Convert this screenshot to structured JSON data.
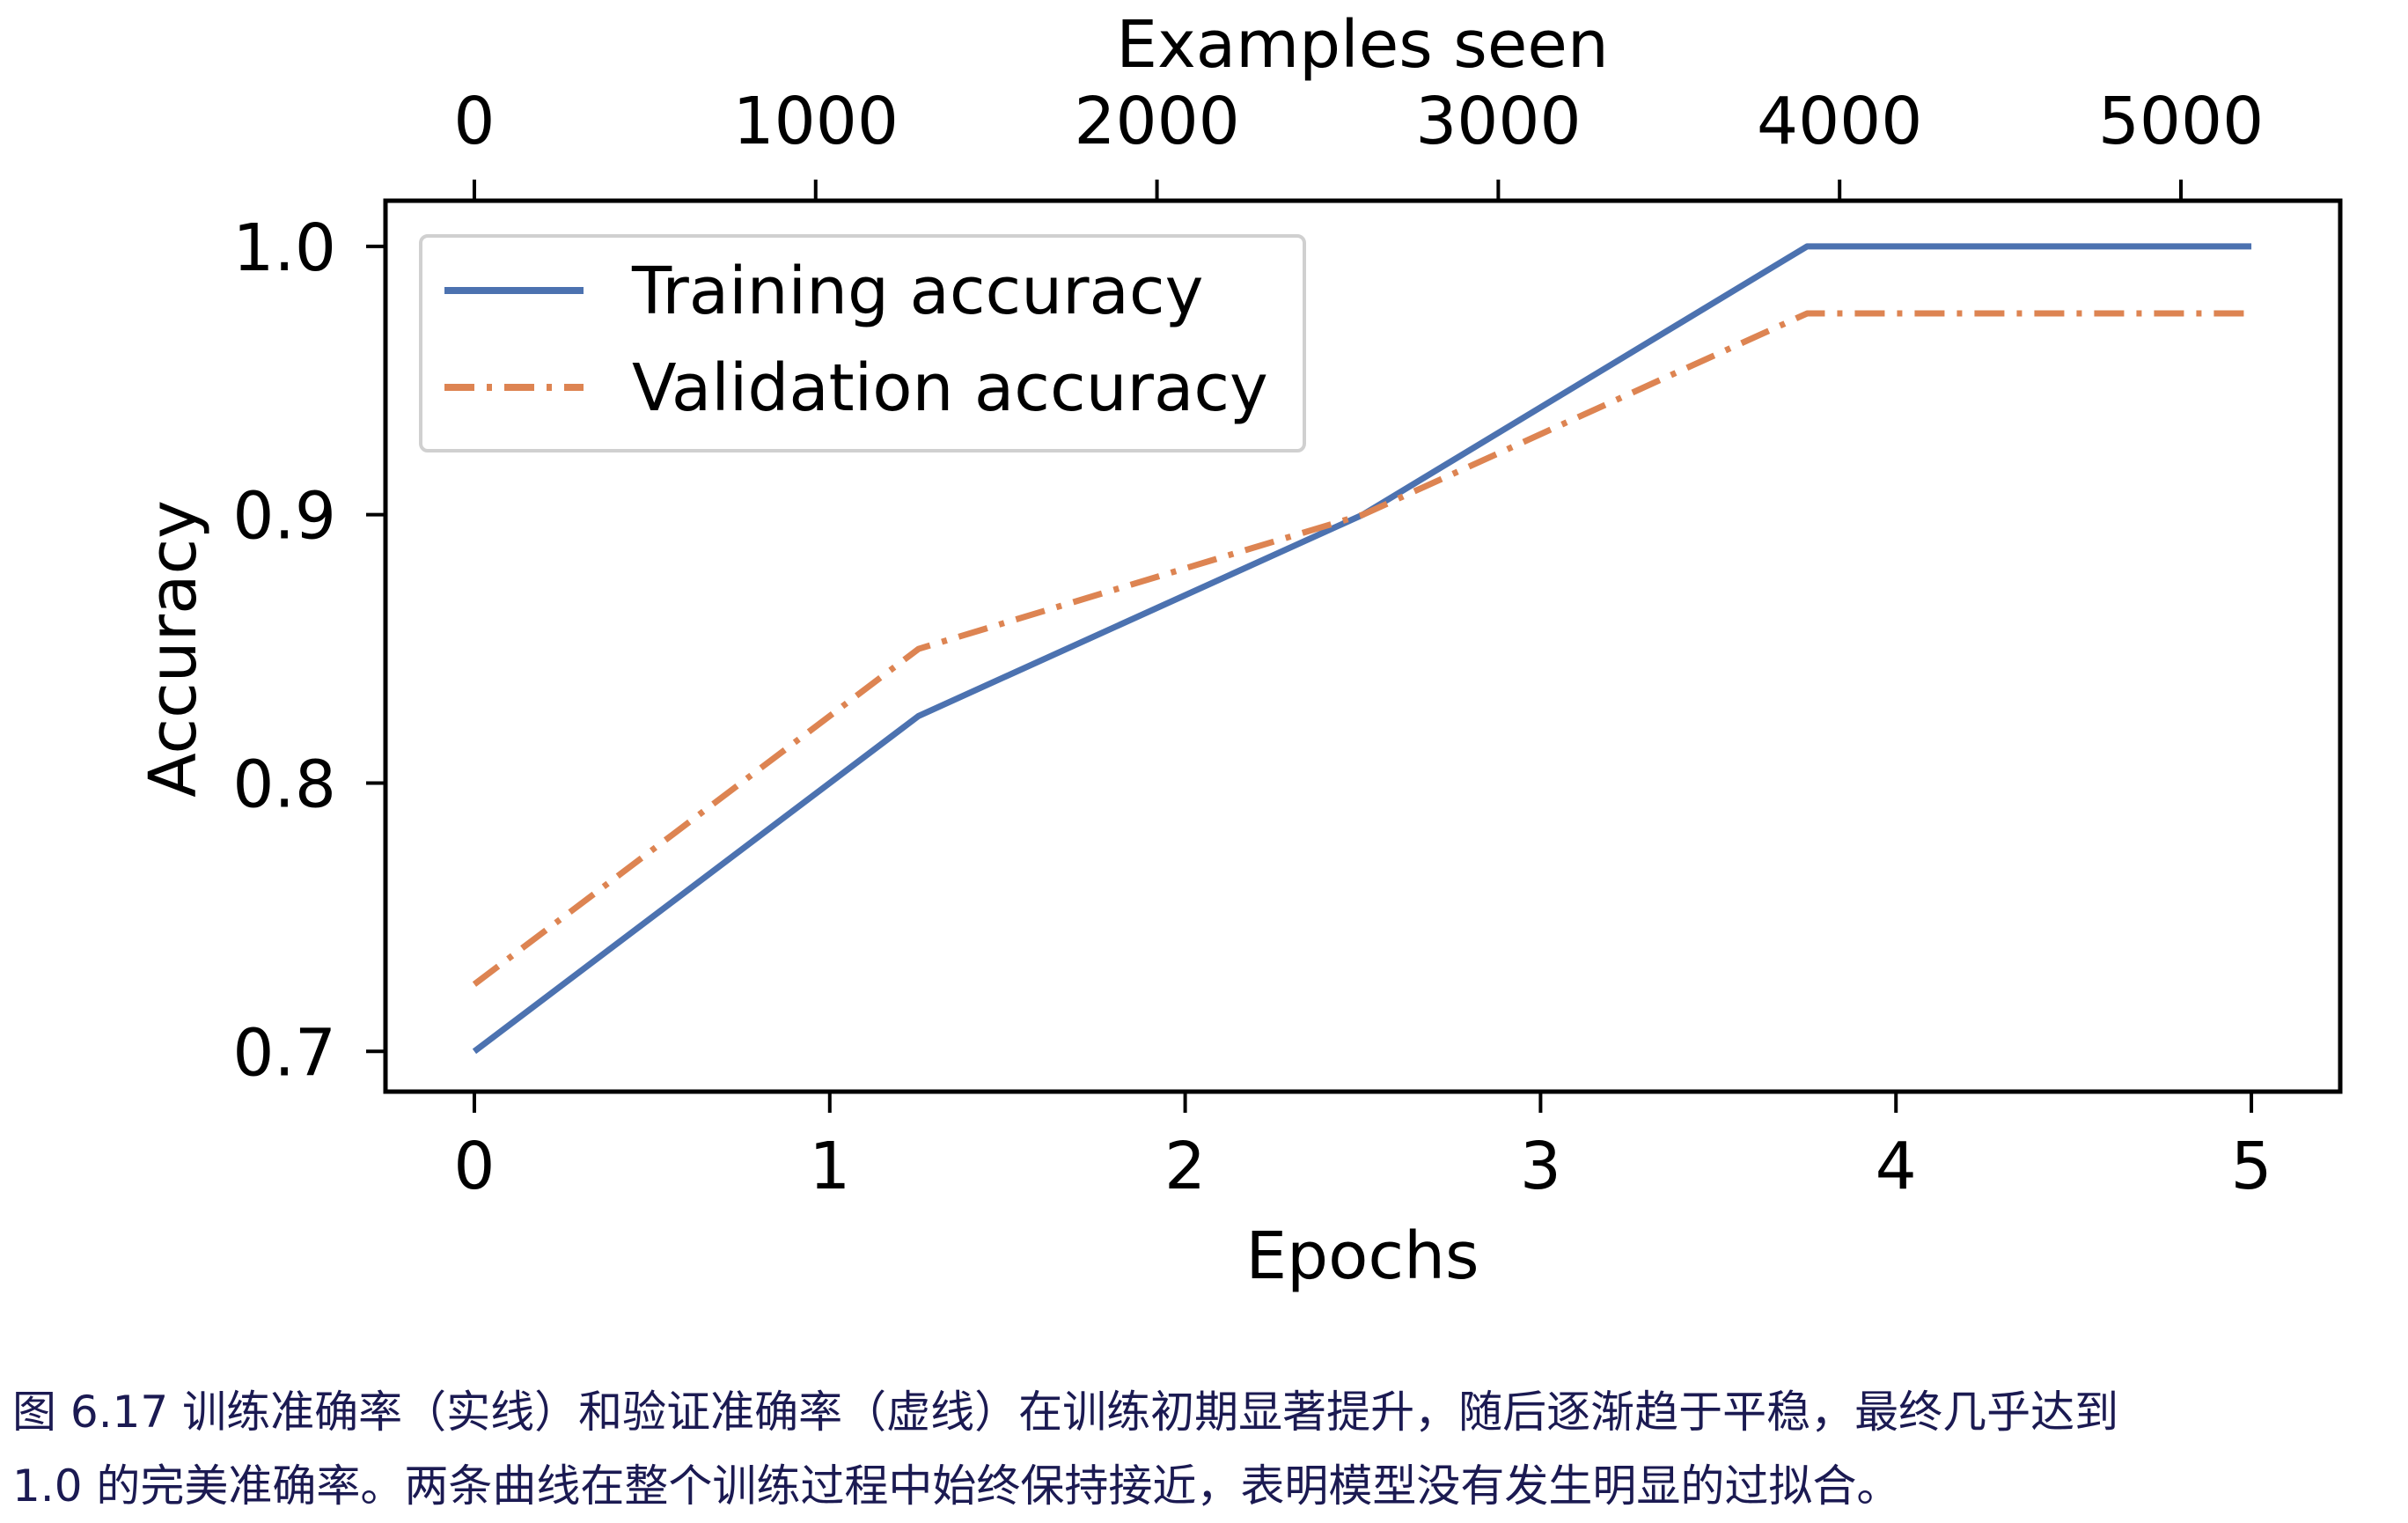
{
  "chart_data": {
    "type": "line",
    "xlabel": "Epochs",
    "ylabel": "Accuracy",
    "top_xlabel": "Examples seen",
    "xlim": [
      -0.25,
      5.25
    ],
    "ylim": [
      0.685,
      1.017
    ],
    "x_ticks": [
      "0",
      "1",
      "2",
      "3",
      "4",
      "5"
    ],
    "y_ticks": [
      "0.7",
      "0.8",
      "0.9",
      "1.0"
    ],
    "top_x_ticks": [
      "0",
      "1000",
      "2000",
      "3000",
      "4000",
      "5000"
    ],
    "top_xlim_examples": [
      0,
      5000
    ],
    "grid": false,
    "legend_position": "top-left",
    "x": [
      0,
      1.25,
      2.5,
      3.75,
      5
    ],
    "series": [
      {
        "name": "Training accuracy",
        "values": [
          0.7,
          0.825,
          0.9,
          1.0,
          1.0
        ],
        "color": "#4c72b0",
        "style": "solid"
      },
      {
        "name": "Validation accuracy",
        "values": [
          0.725,
          0.85,
          0.9,
          0.975,
          0.975
        ],
        "color": "#dd8452",
        "style": "dashdot"
      }
    ]
  },
  "caption": {
    "line1": "图 6.17 训练准确率（实线）和验证准确率（虚线）在训练初期显著提升，随后逐渐趋于平稳，最终几乎达到",
    "line2": "1.0 的完美准确率。两条曲线在整个训练过程中始终保持接近，表明模型没有发生明显的过拟合。"
  }
}
